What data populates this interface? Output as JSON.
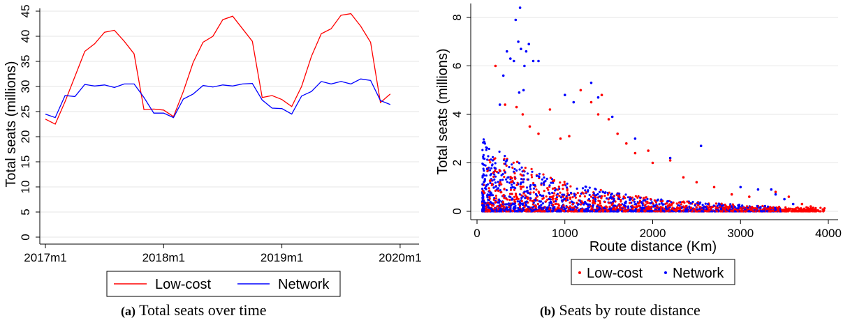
{
  "chart_data": [
    {
      "type": "line",
      "xlabel": "",
      "ylabel": "Total seats (millions)",
      "x_unit": "month",
      "x": [
        "2017-01",
        "2017-02",
        "2017-03",
        "2017-04",
        "2017-05",
        "2017-06",
        "2017-07",
        "2017-08",
        "2017-09",
        "2017-10",
        "2017-11",
        "2017-12",
        "2018-01",
        "2018-02",
        "2018-03",
        "2018-04",
        "2018-05",
        "2018-06",
        "2018-07",
        "2018-08",
        "2018-09",
        "2018-10",
        "2018-11",
        "2018-12",
        "2019-01",
        "2019-02",
        "2019-03",
        "2019-04",
        "2019-05",
        "2019-06",
        "2019-07",
        "2019-08",
        "2019-09",
        "2019-10",
        "2019-11",
        "2019-12"
      ],
      "x_ticks": [
        "2017m1",
        "2018m1",
        "2019m1",
        "2020m1"
      ],
      "x_tick_positions": [
        "2017-01",
        "2018-01",
        "2019-01",
        "2020-01"
      ],
      "ylim": [
        0,
        45
      ],
      "y_ticks": [
        0,
        5,
        10,
        15,
        20,
        25,
        30,
        35,
        40,
        45
      ],
      "grid": "horizontal",
      "legend_position": "bottom",
      "series": [
        {
          "name": "Low-cost",
          "color": "#ff0000",
          "values": [
            23.5,
            22.5,
            27.0,
            32.0,
            37.0,
            38.5,
            40.8,
            41.2,
            39.0,
            36.5,
            25.4,
            25.5,
            25.3,
            24.0,
            29.0,
            34.8,
            38.8,
            40.0,
            43.3,
            44.0,
            41.5,
            39.0,
            27.8,
            28.2,
            27.4,
            26.0,
            30.0,
            36.0,
            40.5,
            41.5,
            44.2,
            44.5,
            42.0,
            38.8,
            26.8,
            28.5
          ]
        },
        {
          "name": "Network",
          "color": "#0000ff",
          "values": [
            24.5,
            23.8,
            28.2,
            28.0,
            30.4,
            30.1,
            30.3,
            29.8,
            30.5,
            30.5,
            27.8,
            24.7,
            24.7,
            23.8,
            27.5,
            28.5,
            30.2,
            29.9,
            30.3,
            30.1,
            30.5,
            30.6,
            27.3,
            25.7,
            25.6,
            24.5,
            28.1,
            29.0,
            31.0,
            30.5,
            31.0,
            30.5,
            31.5,
            31.2,
            27.2,
            26.4
          ]
        }
      ]
    },
    {
      "type": "scatter",
      "xlabel": "Route distance (Km)",
      "ylabel": "Total seats (millions)",
      "xlim": [
        0,
        4000
      ],
      "ylim": [
        0,
        8.4
      ],
      "x_ticks": [
        0,
        1000,
        2000,
        3000,
        4000
      ],
      "y_ticks": [
        0,
        2,
        4,
        6,
        8
      ],
      "grid": "horizontal",
      "legend_position": "bottom",
      "series": [
        {
          "name": "Low-cost",
          "color": "#ff0000",
          "points": [
            [
              210,
              6.0
            ],
            [
              320,
              4.4
            ],
            [
              450,
              4.3
            ],
            [
              520,
              4.0
            ],
            [
              600,
              3.5
            ],
            [
              700,
              3.2
            ],
            [
              830,
              4.2
            ],
            [
              950,
              3.0
            ],
            [
              1050,
              3.1
            ],
            [
              1180,
              5.0
            ],
            [
              1300,
              4.5
            ],
            [
              1380,
              4.0
            ],
            [
              1420,
              4.8
            ],
            [
              1500,
              3.8
            ],
            [
              1600,
              3.2
            ],
            [
              1700,
              2.8
            ],
            [
              1800,
              2.4
            ],
            [
              1950,
              2.5
            ],
            [
              2000,
              2.0
            ],
            [
              2200,
              2.1
            ],
            [
              2350,
              1.4
            ],
            [
              2500,
              1.2
            ],
            [
              2700,
              1.0
            ],
            [
              2900,
              0.7
            ],
            [
              3100,
              0.6
            ],
            [
              3400,
              0.8
            ],
            [
              3550,
              0.6
            ],
            [
              3700,
              0.3
            ],
            [
              3800,
              0.2
            ],
            [
              3950,
              0.05
            ]
          ]
        },
        {
          "name": "Network",
          "color": "#0000ff",
          "points": [
            [
              260,
              4.4
            ],
            [
              300,
              5.6
            ],
            [
              340,
              6.6
            ],
            [
              380,
              6.3
            ],
            [
              420,
              6.2
            ],
            [
              440,
              7.9
            ],
            [
              470,
              7.0
            ],
            [
              490,
              8.4
            ],
            [
              500,
              6.7
            ],
            [
              540,
              6.0
            ],
            [
              560,
              6.6
            ],
            [
              590,
              6.9
            ],
            [
              640,
              6.2
            ],
            [
              700,
              6.2
            ],
            [
              530,
              5.0
            ],
            [
              480,
              4.9
            ],
            [
              1000,
              4.8
            ],
            [
              1100,
              4.5
            ],
            [
              1300,
              5.3
            ],
            [
              1380,
              4.7
            ],
            [
              1540,
              3.9
            ],
            [
              1800,
              3.0
            ],
            [
              2200,
              2.2
            ],
            [
              2550,
              2.7
            ],
            [
              3000,
              1.0
            ],
            [
              3200,
              0.9
            ],
            [
              3350,
              0.9
            ],
            [
              3400,
              0.7
            ],
            [
              3500,
              0.5
            ],
            [
              3600,
              0.3
            ]
          ]
        }
      ],
      "bulk_density_note": ""
    }
  ],
  "legend_a": {
    "low_cost": "Low-cost",
    "network": "Network"
  },
  "legend_b": {
    "low_cost": "Low-cost",
    "network": "Network"
  },
  "captions": {
    "a_label": "(a)",
    "a_text": "Total seats over time",
    "b_label": "(b)",
    "b_text": "Seats by route distance"
  }
}
